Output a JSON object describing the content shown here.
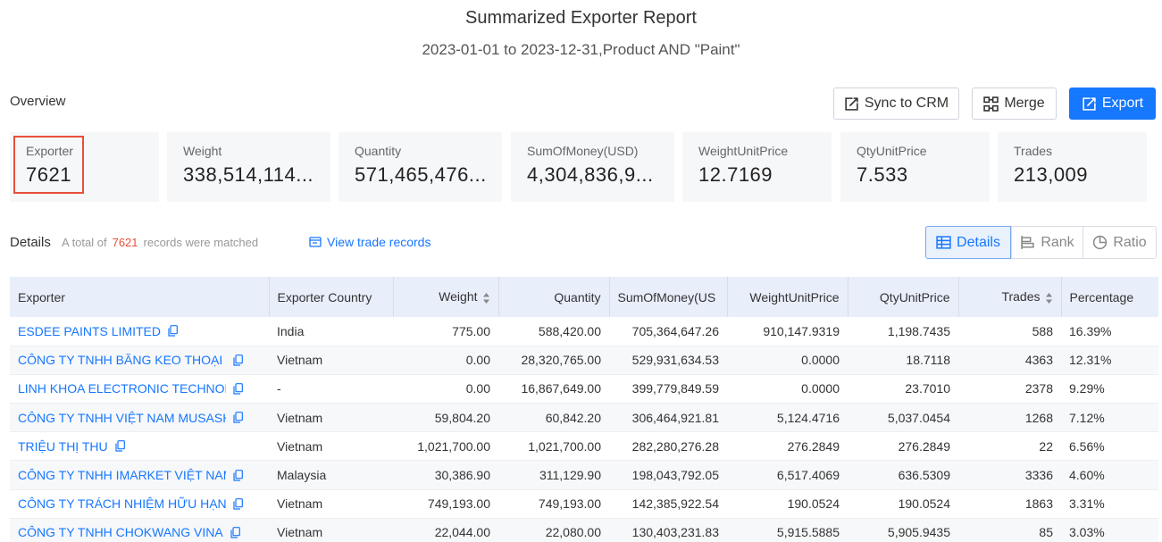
{
  "report": {
    "title": "Summarized Exporter Report",
    "subtitle": "2023-01-01 to 2023-12-31,Product AND \"Paint\""
  },
  "overview": {
    "label": "Overview",
    "buttons": {
      "sync": "Sync to CRM",
      "merge": "Merge",
      "export": "Export"
    },
    "stats": [
      {
        "label": "Exporter",
        "value": "7621"
      },
      {
        "label": "Weight",
        "value": "338,514,114..."
      },
      {
        "label": "Quantity",
        "value": "571,465,476..."
      },
      {
        "label": "SumOfMoney(USD)",
        "value": "4,304,836,9..."
      },
      {
        "label": "WeightUnitPrice",
        "value": "12.7169"
      },
      {
        "label": "QtyUnitPrice",
        "value": "7.533"
      },
      {
        "label": "Trades",
        "value": "213,009"
      }
    ]
  },
  "details": {
    "label": "Details",
    "summary_prefix": "A total of",
    "count": "7621",
    "summary_suffix": "records were matched",
    "view_records": "View trade records",
    "views": {
      "details": "Details",
      "rank": "Rank",
      "ratio": "Ratio"
    }
  },
  "table": {
    "headers": [
      "Exporter",
      "Exporter Country",
      "Weight",
      "Quantity",
      "SumOfMoney(US",
      "WeightUnitPrice",
      "QtyUnitPrice",
      "Trades",
      "Percentage"
    ],
    "rows": [
      [
        "ESDEE PAINTS LIMITED",
        "India",
        "775.00",
        "588,420.00",
        "705,364,647.26",
        "910,147.9319",
        "1,198.7435",
        "588",
        "16.39%"
      ],
      [
        "CÔNG TY TNHH BĂNG KEO THOẠI ĐẠI",
        "Vietnam",
        "0.00",
        "28,320,765.00",
        "529,931,634.53",
        "0.0000",
        "18.7118",
        "4363",
        "12.31%"
      ],
      [
        "LINH KHOA ELECTRONIC TECHNOLOG",
        "-",
        "0.00",
        "16,867,649.00",
        "399,779,849.59",
        "0.0000",
        "23.7010",
        "2378",
        "9.29%"
      ],
      [
        "CÔNG TY TNHH VIỆT NAM MUSASHI F",
        "Vietnam",
        "59,804.20",
        "60,842.20",
        "306,464,921.81",
        "5,124.4716",
        "5,037.0454",
        "1268",
        "7.12%"
      ],
      [
        "TRIỆU THỊ THU",
        "Vietnam",
        "1,021,700.00",
        "1,021,700.00",
        "282,280,276.28",
        "276.2849",
        "276.2849",
        "22",
        "6.56%"
      ],
      [
        "CÔNG TY TNHH IMARKET VIỆT NAM C",
        "Malaysia",
        "30,386.90",
        "311,129.90",
        "198,043,792.05",
        "6,517.4069",
        "636.5309",
        "3336",
        "4.60%"
      ],
      [
        "CÔNG TY TRÁCH NHIỆM HỮU HẠN HÓ",
        "Vietnam",
        "749,193.00",
        "749,193.00",
        "142,385,922.54",
        "190.0524",
        "190.0524",
        "1863",
        "3.31%"
      ],
      [
        "CÔNG TY TNHH CHOKWANG VINA",
        "Vietnam",
        "22,044.00",
        "22,080.00",
        "130,403,231.83",
        "5,915.5885",
        "5,905.9435",
        "85",
        "3.03%"
      ]
    ]
  },
  "colors": {
    "accent": "#1677ff",
    "highlight": "#e8503a",
    "header_bg": "#e9eefb"
  }
}
